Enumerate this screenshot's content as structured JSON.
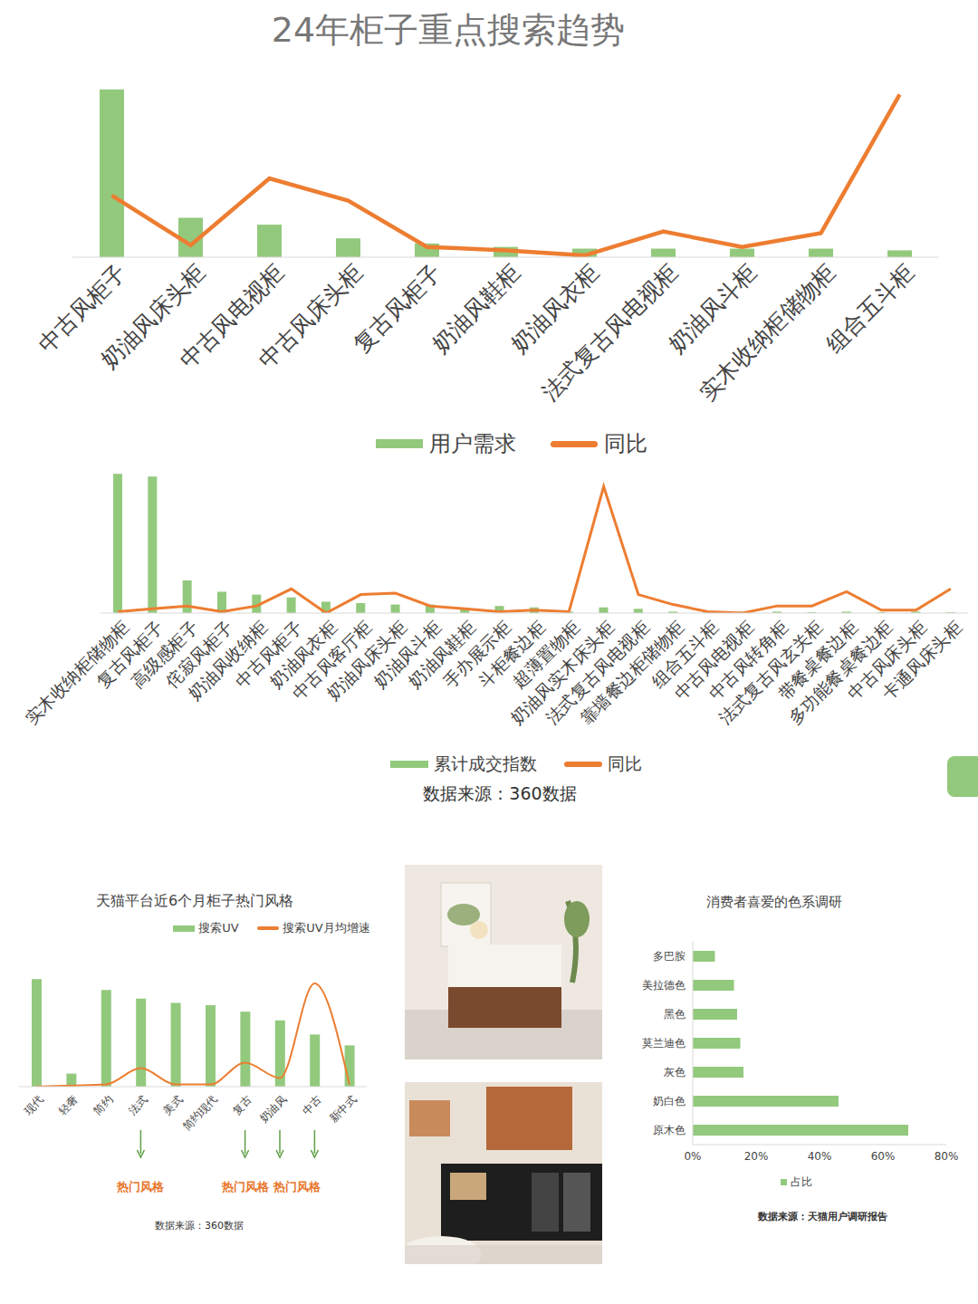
{
  "chart_data": [
    {
      "type": "bar",
      "title": "24年柜子重点搜索趋势",
      "categories": [
        "中古风柜子",
        "奶油风床头柜",
        "中古风电视柜",
        "中古风床头柜",
        "复古风柜子",
        "奶油风鞋柜",
        "奶油风衣柜",
        "法式复古风电视柜",
        "奶油风斗柜",
        "实木收纳柜储物柜",
        "组合五斗柜"
      ],
      "series": [
        {
          "name": "用户需求",
          "type": "bar",
          "color": "#93c97d",
          "values": [
            98,
            23,
            19,
            11,
            8,
            6,
            5,
            5,
            5,
            5,
            4
          ]
        },
        {
          "name": "同比",
          "type": "line",
          "color": "#ed7d31",
          "values": [
            36,
            7,
            46,
            33,
            6,
            4,
            1,
            15,
            6,
            14,
            95
          ]
        }
      ],
      "ylim": [
        0,
        100
      ],
      "tick_labels": "x",
      "legend": "bottom"
    },
    {
      "type": "bar",
      "categories": [
        "实木收纳柜储物柜",
        "复古风柜子",
        "高级感柜子",
        "侘寂风柜子",
        "奶油风收纳柜",
        "中古风柜子",
        "奶油风衣柜",
        "中古风客厅柜",
        "奶油风床头柜",
        "奶油风斗柜",
        "奶油风鞋柜",
        "手办展示柜",
        "斗柜餐边柜",
        "超薄置物柜",
        "奶油风实木床头柜",
        "法式复古风电视柜",
        "靠墙餐边柜储物柜",
        "组合五斗柜",
        "中古风电视柜",
        "中古风转角柜",
        "法式复古风玄关柜",
        "带餐桌餐边柜",
        "多功能餐桌餐边柜",
        "中古风床头柜",
        "卡通风床头柜"
      ],
      "series": [
        {
          "name": "累计成交指数",
          "type": "bar",
          "color": "#93c97d",
          "values": [
            98,
            96,
            23,
            15,
            13,
            11,
            8,
            7,
            6,
            6,
            3,
            5,
            4,
            1,
            4,
            3,
            1,
            0.5,
            1,
            1,
            0.5,
            1,
            0.5,
            1,
            0.5
          ]
        },
        {
          "name": "同比",
          "type": "line",
          "color": "#ed7d31",
          "values": [
            1,
            3,
            5,
            1,
            5,
            17,
            0,
            13,
            14,
            5,
            3,
            1,
            2,
            1,
            89,
            13,
            6,
            1,
            0,
            5,
            5,
            15,
            2,
            2,
            17
          ]
        }
      ],
      "ylim": [
        0,
        100
      ],
      "tick_labels": "x",
      "legend": "bottom",
      "source": "数据来源：360数据"
    },
    {
      "type": "bar",
      "title": "天猫平台近6个月柜子热门风格",
      "categories": [
        "现代",
        "轻奢",
        "简约",
        "法式",
        "美式",
        "简约现代",
        "复古",
        "奶油风",
        "中古",
        "新中式"
      ],
      "series": [
        {
          "name": "搜索UV",
          "type": "bar",
          "color": "#93c97d",
          "values": [
            99,
            12,
            89,
            81,
            77,
            75,
            69,
            61,
            48,
            38
          ]
        },
        {
          "name": "搜索UV月均增速",
          "type": "line",
          "color": "#ed7d31",
          "line_style": "smooth",
          "values": [
            0,
            1,
            2,
            17,
            2,
            2,
            22,
            8,
            95,
            2
          ]
        }
      ],
      "ylim": [
        0,
        100
      ],
      "tick_labels": "x",
      "legend": "top",
      "annotations": [
        {
          "text": "热门风格",
          "categories": [
            "法式"
          ]
        },
        {
          "text": "热门风格",
          "categories": [
            "复古"
          ]
        },
        {
          "text": "热门风格",
          "categories": [
            "奶油风",
            "中古"
          ]
        }
      ],
      "source": "数据来源：360数据"
    },
    {
      "type": "bar",
      "orientation": "horizontal",
      "title": "消费者喜爱的色系调研",
      "categories": [
        "多巴胺",
        "美拉德色",
        "黑色",
        "莫兰迪色",
        "灰色",
        "奶白色",
        "原木色"
      ],
      "series": [
        {
          "name": "占比",
          "color": "#93c97d",
          "values": [
            7,
            13,
            14,
            15,
            16,
            46,
            68
          ]
        }
      ],
      "xlim": [
        0,
        80
      ],
      "xticks": [
        {
          "value": 0,
          "label": "0%"
        },
        {
          "value": 20,
          "label": "20%"
        },
        {
          "value": 40,
          "label": "40%"
        },
        {
          "value": 60,
          "label": "60%"
        },
        {
          "value": 80,
          "label": "80%"
        }
      ],
      "legend": "bottom",
      "source": "数据来源：天猫用户调研报告"
    }
  ]
}
